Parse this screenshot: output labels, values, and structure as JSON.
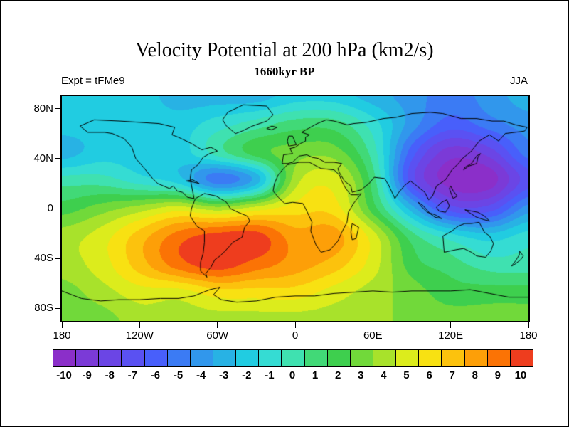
{
  "header": {
    "title": "Velocity Potential at 200 hPa (km2/s)",
    "subtitle": "1660kyr BP",
    "left_label": "Expt = tFMe9",
    "right_label": "JJA"
  },
  "axes": {
    "lat_ticks": [
      {
        "label": "80N",
        "lat": 80
      },
      {
        "label": "40N",
        "lat": 40
      },
      {
        "label": "0",
        "lat": 0
      },
      {
        "label": "40S",
        "lat": -40
      },
      {
        "label": "80S",
        "lat": -80
      }
    ],
    "lon_ticks": [
      {
        "label": "180",
        "lon": -180
      },
      {
        "label": "120W",
        "lon": -120
      },
      {
        "label": "60W",
        "lon": -60
      },
      {
        "label": "0",
        "lon": 0
      },
      {
        "label": "60E",
        "lon": 60
      },
      {
        "label": "120E",
        "lon": 120
      },
      {
        "label": "180",
        "lon": 180
      }
    ]
  },
  "colorbar": {
    "labels": [
      "-10",
      "-9",
      "-8",
      "-7",
      "-6",
      "-5",
      "-4",
      "-3",
      "-2",
      "-1",
      "0",
      "1",
      "2",
      "3",
      "4",
      "5",
      "6",
      "7",
      "8",
      "9",
      "10"
    ],
    "colors": [
      "#8b2fc9",
      "#7b3ad7",
      "#6b45e5",
      "#5a51f2",
      "#485ffb",
      "#3b7bf4",
      "#3197ec",
      "#28b2e4",
      "#21cce1",
      "#35dcd3",
      "#3fe1b0",
      "#41d977",
      "#3ecf4e",
      "#71d93a",
      "#a8e22b",
      "#dcec1c",
      "#f8e112",
      "#fcc20d",
      "#fd9f08",
      "#fb7305",
      "#ee3d1e"
    ]
  },
  "chart_data": {
    "type": "heatmap",
    "title": "Velocity Potential at 200 hPa (km2/s)",
    "subtitle": "1660kyr BP",
    "experiment": "tFMe9",
    "season": "JJA",
    "variable": "velocity potential",
    "level_hPa": 200,
    "units": "km2/s",
    "contour_interval": 1,
    "range": [
      -10,
      10
    ],
    "x_axis": {
      "label": "longitude",
      "ticks": [
        "180",
        "120W",
        "60W",
        "0",
        "60E",
        "120E",
        "180"
      ]
    },
    "y_axis": {
      "label": "latitude",
      "ticks": [
        "80N",
        "40N",
        "0",
        "40S",
        "80S"
      ]
    },
    "lons": [
      -180,
      -150,
      -120,
      -90,
      -60,
      -30,
      0,
      30,
      60,
      90,
      120,
      150,
      180
    ],
    "lats": [
      90,
      67.5,
      45,
      22.5,
      0,
      -22.5,
      -45,
      -67.5,
      -90
    ],
    "values": [
      [
        -2,
        -2,
        -2,
        -3,
        -3,
        -3,
        -2,
        -2,
        -3,
        -4,
        -5,
        -4,
        -3
      ],
      [
        -2,
        -2,
        -2,
        -2,
        -1,
        0,
        1,
        1,
        -1,
        -4,
        -6,
        -5,
        -4
      ],
      [
        -3,
        -2,
        -2,
        -2,
        0,
        2,
        3,
        3,
        0,
        -6,
        -9,
        -8,
        -5
      ],
      [
        0,
        0,
        -1,
        -2,
        -5,
        -3,
        4,
        5,
        1,
        -7,
        -10,
        -10,
        -7
      ],
      [
        2,
        3,
        4,
        5,
        4,
        5,
        6,
        6,
        2,
        -3,
        -7,
        -7,
        -4
      ],
      [
        4,
        5,
        7,
        9,
        10,
        10,
        8,
        8,
        5,
        1,
        -1,
        -2,
        -1
      ],
      [
        4,
        5,
        7,
        9,
        10,
        9,
        8,
        7,
        5,
        2,
        1,
        0,
        0
      ],
      [
        3,
        4,
        5,
        5,
        6,
        6,
        6,
        5,
        4,
        3,
        2,
        2,
        2
      ],
      [
        3,
        3,
        4,
        4,
        4,
        4,
        4,
        4,
        4,
        3,
        3,
        3,
        3
      ]
    ],
    "description": "Filled-contour global map: broad maximum (~+10) over South America and the South Atlantic, deep minimum (~-10) over the tropical western Pacific and East Asia, secondary cyclonic minimum over the tropical Atlantic near 10N 45W."
  },
  "map": {
    "coastline_color": "#000000",
    "coastlines": {
      "north_america": [
        [
          -166,
          66
        ],
        [
          -160,
          61
        ],
        [
          -147,
          61
        ],
        [
          -141,
          60
        ],
        [
          -132,
          56
        ],
        [
          -126,
          49
        ],
        [
          -123,
          40
        ],
        [
          -117,
          33
        ],
        [
          -110,
          24
        ],
        [
          -106,
          20
        ],
        [
          -97,
          16
        ],
        [
          -94,
          18
        ],
        [
          -91,
          14
        ],
        [
          -87,
          13
        ],
        [
          -83,
          9
        ],
        [
          -78,
          8
        ],
        [
          -81,
          24
        ],
        [
          -80,
          31
        ],
        [
          -75,
          35
        ],
        [
          -71,
          41
        ],
        [
          -66,
          44
        ],
        [
          -60,
          46
        ],
        [
          -65,
          49
        ],
        [
          -72,
          47
        ],
        [
          -80,
          52
        ],
        [
          -90,
          57
        ],
        [
          -95,
          59
        ],
        [
          -93,
          65
        ],
        [
          -105,
          68
        ],
        [
          -120,
          69
        ],
        [
          -135,
          70
        ],
        [
          -155,
          71
        ],
        [
          -166,
          66
        ]
      ],
      "greenland": [
        [
          -46,
          60
        ],
        [
          -53,
          66
        ],
        [
          -56,
          71
        ],
        [
          -52,
          77
        ],
        [
          -40,
          83
        ],
        [
          -22,
          82
        ],
        [
          -17,
          75
        ],
        [
          -22,
          70
        ],
        [
          -33,
          66
        ],
        [
          -41,
          62
        ],
        [
          -46,
          60
        ]
      ],
      "south_america": [
        [
          -77,
          8
        ],
        [
          -70,
          12
        ],
        [
          -61,
          10
        ],
        [
          -53,
          5
        ],
        [
          -50,
          0
        ],
        [
          -44,
          -3
        ],
        [
          -37,
          -6
        ],
        [
          -35,
          -10
        ],
        [
          -39,
          -15
        ],
        [
          -41,
          -23
        ],
        [
          -48,
          -27
        ],
        [
          -54,
          -34
        ],
        [
          -58,
          -38
        ],
        [
          -62,
          -41
        ],
        [
          -65,
          -47
        ],
        [
          -69,
          -52
        ],
        [
          -68,
          -55
        ],
        [
          -73,
          -50
        ],
        [
          -73,
          -43
        ],
        [
          -71,
          -36
        ],
        [
          -70,
          -27
        ],
        [
          -70,
          -18
        ],
        [
          -76,
          -14
        ],
        [
          -81,
          -6
        ],
        [
          -80,
          0
        ],
        [
          -77,
          8
        ]
      ],
      "africa": [
        [
          -6,
          35
        ],
        [
          3,
          37
        ],
        [
          11,
          37
        ],
        [
          20,
          32
        ],
        [
          30,
          31
        ],
        [
          34,
          27
        ],
        [
          36,
          22
        ],
        [
          39,
          16
        ],
        [
          43,
          11
        ],
        [
          48,
          11
        ],
        [
          51,
          12
        ],
        [
          45,
          4
        ],
        [
          41,
          -3
        ],
        [
          40,
          -11
        ],
        [
          36,
          -19
        ],
        [
          33,
          -26
        ],
        [
          27,
          -33
        ],
        [
          20,
          -35
        ],
        [
          16,
          -29
        ],
        [
          12,
          -18
        ],
        [
          13,
          -11
        ],
        [
          9,
          -2
        ],
        [
          6,
          4
        ],
        [
          -2,
          5
        ],
        [
          -8,
          4
        ],
        [
          -13,
          9
        ],
        [
          -17,
          14
        ],
        [
          -16,
          20
        ],
        [
          -13,
          27
        ],
        [
          -9,
          32
        ],
        [
          -6,
          35
        ]
      ],
      "eurasia": [
        [
          -10,
          36
        ],
        [
          -9,
          43
        ],
        [
          -2,
          44
        ],
        [
          -4,
          48
        ],
        [
          0,
          49
        ],
        [
          4,
          52
        ],
        [
          8,
          54
        ],
        [
          8,
          57
        ],
        [
          11,
          59
        ],
        [
          5,
          61
        ],
        [
          10,
          64
        ],
        [
          17,
          68
        ],
        [
          24,
          71
        ],
        [
          30,
          70
        ],
        [
          40,
          67
        ],
        [
          45,
          68
        ],
        [
          55,
          69
        ],
        [
          68,
          72
        ],
        [
          78,
          73
        ],
        [
          90,
          76
        ],
        [
          104,
          77
        ],
        [
          114,
          76
        ],
        [
          128,
          72
        ],
        [
          140,
          72
        ],
        [
          152,
          70
        ],
        [
          161,
          70
        ],
        [
          170,
          67
        ],
        [
          179,
          65
        ],
        [
          177,
          62
        ],
        [
          162,
          60
        ],
        [
          157,
          54
        ],
        [
          150,
          59
        ],
        [
          142,
          54
        ],
        [
          136,
          46
        ],
        [
          129,
          40
        ],
        [
          126,
          36
        ],
        [
          121,
          31
        ],
        [
          116,
          23
        ],
        [
          109,
          18
        ],
        [
          106,
          10
        ],
        [
          103,
          7
        ],
        [
          100,
          13
        ],
        [
          94,
          18
        ],
        [
          89,
          22
        ],
        [
          85,
          19
        ],
        [
          80,
          13
        ],
        [
          77,
          8
        ],
        [
          72,
          19
        ],
        [
          69,
          24
        ],
        [
          61,
          25
        ],
        [
          57,
          20
        ],
        [
          51,
          15
        ],
        [
          44,
          13
        ],
        [
          43,
          18
        ],
        [
          38,
          22
        ],
        [
          34,
          29
        ],
        [
          33,
          32
        ],
        [
          36,
          36
        ],
        [
          30,
          37
        ],
        [
          23,
          37
        ],
        [
          18,
          40
        ],
        [
          13,
          41
        ],
        [
          9,
          43
        ],
        [
          3,
          42
        ],
        [
          -2,
          37
        ],
        [
          -6,
          36
        ],
        [
          -10,
          36
        ]
      ],
      "australia": [
        [
          114,
          -22
        ],
        [
          115,
          -35
        ],
        [
          124,
          -33
        ],
        [
          130,
          -32
        ],
        [
          136,
          -35
        ],
        [
          140,
          -38
        ],
        [
          147,
          -39
        ],
        [
          151,
          -34
        ],
        [
          153,
          -28
        ],
        [
          150,
          -22
        ],
        [
          146,
          -19
        ],
        [
          142,
          -11
        ],
        [
          136,
          -12
        ],
        [
          131,
          -12
        ],
        [
          126,
          -14
        ],
        [
          121,
          -18
        ],
        [
          114,
          -22
        ]
      ],
      "antarctica": [
        [
          -180,
          -66
        ],
        [
          -165,
          -72
        ],
        [
          -150,
          -74
        ],
        [
          -136,
          -73
        ],
        [
          -120,
          -73
        ],
        [
          -104,
          -72
        ],
        [
          -90,
          -72
        ],
        [
          -78,
          -70
        ],
        [
          -66,
          -65
        ],
        [
          -58,
          -63
        ],
        [
          -63,
          -69
        ],
        [
          -57,
          -73
        ],
        [
          -45,
          -75
        ],
        [
          -30,
          -74
        ],
        [
          -15,
          -71
        ],
        [
          0,
          -70
        ],
        [
          15,
          -70
        ],
        [
          30,
          -68
        ],
        [
          45,
          -67
        ],
        [
          60,
          -66
        ],
        [
          75,
          -67
        ],
        [
          90,
          -66
        ],
        [
          104,
          -66
        ],
        [
          120,
          -66
        ],
        [
          135,
          -65
        ],
        [
          150,
          -68
        ],
        [
          165,
          -71
        ],
        [
          180,
          -71
        ]
      ],
      "uk": [
        [
          -5,
          50
        ],
        [
          -6,
          54
        ],
        [
          -5,
          58
        ],
        [
          -2,
          58
        ],
        [
          0,
          53
        ],
        [
          1,
          51
        ],
        [
          -5,
          50
        ]
      ],
      "iceland": [
        [
          -22,
          64
        ],
        [
          -18,
          66
        ],
        [
          -14,
          65
        ],
        [
          -18,
          63
        ],
        [
          -22,
          64
        ]
      ],
      "japan": [
        [
          130,
          31
        ],
        [
          134,
          34
        ],
        [
          137,
          35
        ],
        [
          140,
          36
        ],
        [
          141,
          41
        ],
        [
          143,
          44
        ],
        [
          140,
          42
        ],
        [
          136,
          36
        ],
        [
          131,
          33
        ],
        [
          130,
          31
        ]
      ],
      "borneo": [
        [
          109,
          1
        ],
        [
          113,
          5
        ],
        [
          117,
          7
        ],
        [
          119,
          2
        ],
        [
          116,
          -3
        ],
        [
          111,
          -2
        ],
        [
          109,
          1
        ]
      ],
      "sumatra_java": [
        [
          95,
          5
        ],
        [
          99,
          2
        ],
        [
          104,
          -4
        ],
        [
          108,
          -7
        ],
        [
          113,
          -8
        ],
        [
          108,
          -5
        ],
        [
          102,
          -3
        ],
        [
          97,
          2
        ],
        [
          95,
          5
        ]
      ],
      "new_guinea": [
        [
          131,
          -1
        ],
        [
          136,
          -2
        ],
        [
          141,
          -3
        ],
        [
          146,
          -6
        ],
        [
          150,
          -10
        ],
        [
          146,
          -9
        ],
        [
          140,
          -7
        ],
        [
          134,
          -3
        ],
        [
          131,
          -1
        ]
      ],
      "philippines": [
        [
          120,
          18
        ],
        [
          122,
          14
        ],
        [
          125,
          10
        ],
        [
          122,
          8
        ],
        [
          120,
          13
        ],
        [
          119,
          16
        ],
        [
          120,
          18
        ]
      ],
      "new_zealand": [
        [
          173,
          -34
        ],
        [
          176,
          -38
        ],
        [
          174,
          -41
        ],
        [
          169,
          -45
        ],
        [
          167,
          -46
        ],
        [
          170,
          -42
        ],
        [
          173,
          -37
        ],
        [
          173,
          -34
        ]
      ],
      "madagascar": [
        [
          44,
          -12
        ],
        [
          49,
          -15
        ],
        [
          47,
          -24
        ],
        [
          44,
          -25
        ],
        [
          43,
          -19
        ],
        [
          44,
          -12
        ]
      ],
      "caribbean": [
        [
          -84,
          22
        ],
        [
          -78,
          21
        ],
        [
          -74,
          20
        ],
        [
          -79,
          23
        ],
        [
          -84,
          22
        ]
      ]
    }
  }
}
